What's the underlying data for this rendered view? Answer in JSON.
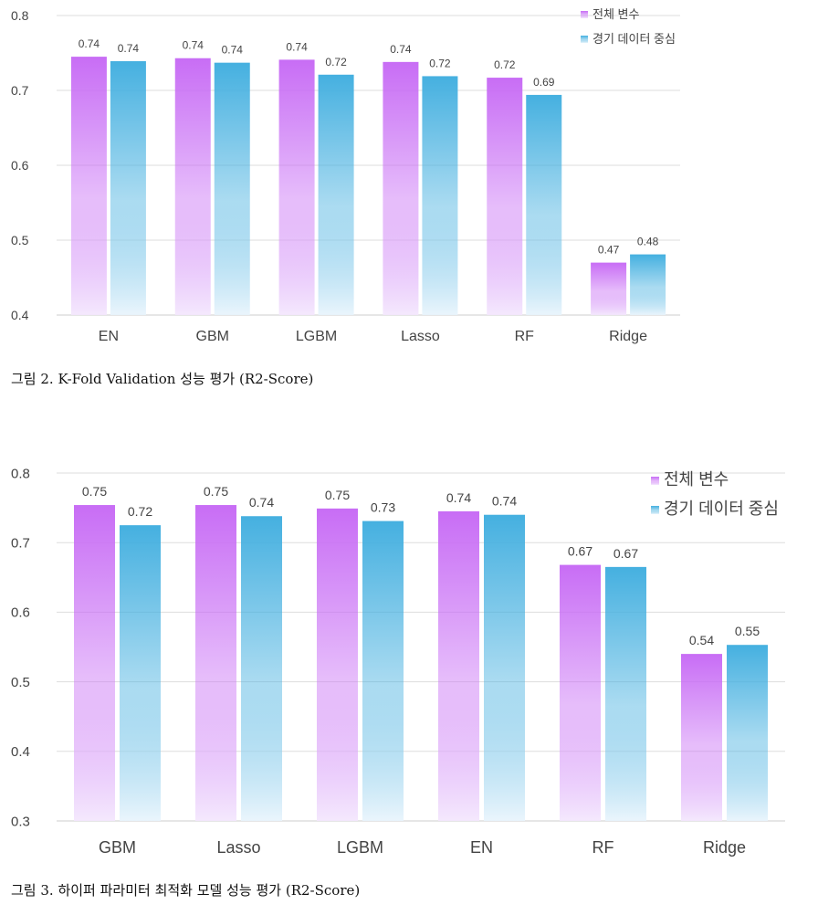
{
  "figures": [
    {
      "caption": "그림 2. K-Fold Validation 성능 평가 (R2-Score)"
    },
    {
      "caption": "그림 3. 하이퍼 파라미터 최적화 모델 성능 평가 (R2-Score)"
    }
  ],
  "colors": {
    "series_all": "#c86df5",
    "series_game": "#45b0e0",
    "grid": "#dddddd",
    "text": "#444444"
  },
  "chart_data": [
    {
      "type": "bar",
      "title": "",
      "xlabel": "",
      "ylabel": "",
      "categories": [
        "EN",
        "GBM",
        "LGBM",
        "Lasso",
        "RF",
        "Ridge"
      ],
      "series": [
        {
          "name": "전체 변수",
          "values": [
            0.745,
            0.743,
            0.741,
            0.738,
            0.717,
            0.47
          ],
          "labels": [
            "0.74",
            "0.74",
            "0.74",
            "0.74",
            "0.72",
            "0.47"
          ]
        },
        {
          "name": "경기 데이터 중심",
          "values": [
            0.739,
            0.737,
            0.721,
            0.719,
            0.694,
            0.481
          ],
          "labels": [
            "0.74",
            "0.74",
            "0.72",
            "0.72",
            "0.69",
            "0.48"
          ]
        }
      ],
      "ylim": [
        0.4,
        0.8
      ],
      "yticks": [
        "0.4",
        "0.5",
        "0.6",
        "0.7",
        "0.8"
      ],
      "grid": true,
      "legend": "top-right"
    },
    {
      "type": "bar",
      "title": "",
      "xlabel": "",
      "ylabel": "",
      "categories": [
        "GBM",
        "Lasso",
        "LGBM",
        "EN",
        "RF",
        "Ridge"
      ],
      "series": [
        {
          "name": "전체 변수",
          "values": [
            0.754,
            0.754,
            0.749,
            0.745,
            0.668,
            0.54
          ],
          "labels": [
            "0.75",
            "0.75",
            "0.75",
            "0.74",
            "0.67",
            "0.54"
          ]
        },
        {
          "name": "경기 데이터 중심",
          "values": [
            0.725,
            0.738,
            0.731,
            0.74,
            0.665,
            0.553
          ],
          "labels": [
            "0.72",
            "0.74",
            "0.73",
            "0.74",
            "0.67",
            "0.55"
          ]
        }
      ],
      "ylim": [
        0.3,
        0.8
      ],
      "yticks": [
        "0.3",
        "0.4",
        "0.5",
        "0.6",
        "0.7",
        "0.8"
      ],
      "grid": true,
      "legend": "top-right"
    }
  ]
}
